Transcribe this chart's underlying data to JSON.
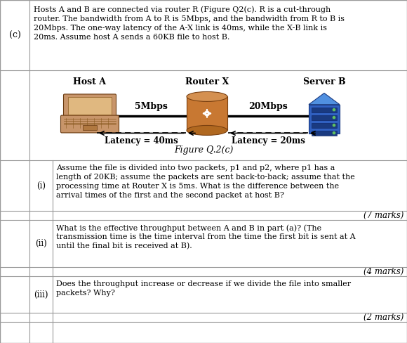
{
  "title_c": "(c)",
  "intro_text_lines": [
    "Hosts A and B are connected via router R (Figure Q2(c). R is a cut-through",
    "router. The bandwidth from A to R is 5Mbps, and the bandwidth from R to B is",
    "20Mbps. The one-way latency of the A-X link is 40ms, while the X-B link is",
    "20ms. Assume host A sends a 60KB file to host B."
  ],
  "host_a_label": "Host A",
  "router_x_label": "Router X",
  "server_b_label": "Server B",
  "link1_label": "5Mbps",
  "link2_label": "20Mbps",
  "latency1_label": "Latency = 40ms",
  "latency2_label": "Latency = 20ms",
  "figure_caption": "Figure Q.2(c)",
  "row_i_num": "(i)",
  "row_i_text_lines": [
    "Assume the file is divided into two packets, p1 and p2, where p1 has a",
    "length of 20KB; assume the packets are sent back-to-back; assume that the",
    "processing time at Router X is 5ms. What is the difference between the",
    "arrival times of the first and the second packet at host B?"
  ],
  "row_i_marks": "(7 marks)",
  "row_ii_num": "(ii)",
  "row_ii_text_lines": [
    "What is the effective throughput between A and B in part (a)? (The",
    "transmission time is the time interval from the time the first bit is sent at A",
    "until the final bit is received at B)."
  ],
  "row_ii_marks": "(4 marks)",
  "row_iii_num": "(iii)",
  "row_iii_text_lines": [
    "Does the throughput increase or decrease if we divide the file into smaller",
    "packets? Why?"
  ],
  "row_iii_marks": "(2 marks)",
  "bg_color": "#ffffff",
  "border_color": "#999999",
  "text_color": "#000000",
  "laptop_body_color": "#C8956A",
  "laptop_screen_inner": "#E8C090",
  "laptop_keyboard_color": "#A07848",
  "router_body_color": "#C87832",
  "router_top_color": "#D49050",
  "server_body_color": "#3060C0",
  "server_dark_color": "#1a3a80",
  "server_light_color": "#5080d0"
}
